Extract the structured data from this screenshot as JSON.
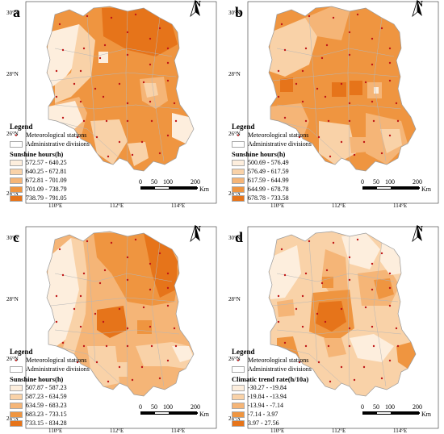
{
  "north_label": "N",
  "lat_labels": [
    "30°N",
    "28°N",
    "26°N",
    "24°N"
  ],
  "lon_labels": [
    "110°E",
    "112°E",
    "114°E"
  ],
  "legend_title": "Legend",
  "station_label": "Meteorological stations",
  "division_label": "Administrative divisions",
  "scale": {
    "ticks": [
      "0",
      "50",
      "100",
      "200"
    ],
    "unit": "Km"
  },
  "panels": [
    {
      "letter": "a",
      "subtitle": "Sunshine hours(h)",
      "classes": [
        "572.57 - 640.25",
        "640.25 - 672.81",
        "672.81 - 701.09",
        "701.09 - 738.79",
        "738.79 - 791.05"
      ]
    },
    {
      "letter": "b",
      "subtitle": "Sunshine hours(h)",
      "classes": [
        "500.69 - 576.49",
        "576.49 - 617.59",
        "617.59 - 644.99",
        "644.99 - 678.78",
        "678.78 - 733.58"
      ]
    },
    {
      "letter": "c",
      "subtitle": "Sunshine hours(h)",
      "classes": [
        "507.87 - 587.23",
        "587.23 - 634.59",
        "634.59 - 683.23",
        "683.23 - 733.15",
        "733.15 - 834.28"
      ]
    },
    {
      "letter": "d",
      "subtitle": "Climatic trend rate(h/10a)",
      "classes": [
        "-30.27 - -19.84",
        "-19.84 - -13.94",
        "-13.94 - -7.14",
        "-7.14 - 3.97",
        "3.97 - 27.56"
      ]
    }
  ],
  "colors": {
    "classes": [
      "#fdeedd",
      "#f9d2a8",
      "#f5b577",
      "#ef9540",
      "#e6741a"
    ],
    "station": "#c01818",
    "border": "#b6b6b6"
  }
}
